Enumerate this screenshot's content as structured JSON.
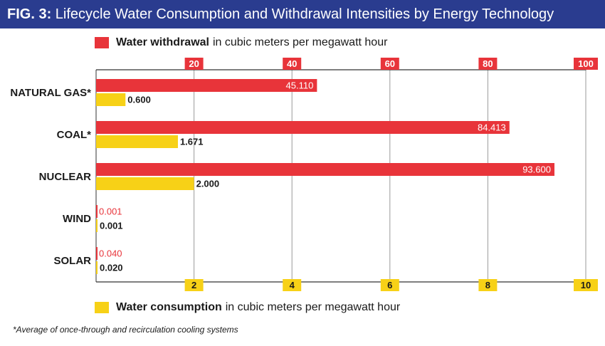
{
  "title": {
    "prefix": "FIG. 3:",
    "text": "Lifecycle Water Consumption and Withdrawal Intensities by Energy Technology"
  },
  "legend": {
    "withdrawal": {
      "bold": "Water withdrawal",
      "rest": "in cubic meters per megawatt hour"
    },
    "consumption": {
      "bold": "Water consumption",
      "rest": "in cubic meters per megawatt hour"
    }
  },
  "footnote": "*Average of once-through and recirculation cooling systems",
  "colors": {
    "title_bg": "#2a3c8f",
    "withdrawal": "#e8343a",
    "consumption": "#f7d117",
    "grid": "#9a9a9a",
    "axis": "#333333"
  },
  "chart_data": {
    "type": "bar",
    "orientation": "horizontal",
    "categories": [
      "NATURAL GAS*",
      "COAL*",
      "NUCLEAR",
      "WIND",
      "SOLAR"
    ],
    "series": [
      {
        "name": "Water withdrawal",
        "values": [
          45.11,
          84.413,
          93.6,
          0.001,
          0.04
        ],
        "labels": [
          "45.110",
          "84.413",
          "93.600",
          "0.001",
          "0.040"
        ],
        "axis": "top",
        "xlim": [
          0,
          100
        ],
        "ticks": [
          20,
          40,
          60,
          80,
          100
        ],
        "tick_labels": [
          "20",
          "40",
          "60",
          "80",
          "100"
        ]
      },
      {
        "name": "Water consumption",
        "values": [
          0.6,
          1.671,
          2.0,
          0.001,
          0.02
        ],
        "labels": [
          "0.600",
          "1.671",
          "2.000",
          "0.001",
          "0.020"
        ],
        "axis": "bottom",
        "xlim": [
          0,
          10
        ],
        "ticks": [
          2,
          4,
          6,
          8,
          10
        ],
        "tick_labels": [
          "2",
          "4",
          "6",
          "8",
          "10"
        ]
      }
    ],
    "grid": true,
    "legend": [
      "top-left",
      "bottom-left"
    ]
  }
}
